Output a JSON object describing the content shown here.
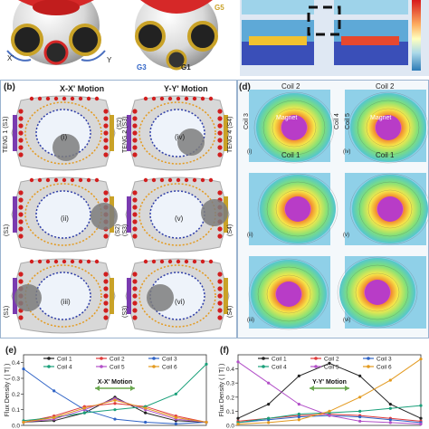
{
  "panel_a": {
    "axis_labels": {
      "x_prime": "X'",
      "y": "Y",
      "g3": "G3",
      "g1": "G1",
      "g5": "G5"
    }
  },
  "panel_b": {
    "letter": "(b)",
    "header_xx": "X-X' Motion",
    "header_yy": "Y-Y' Motion",
    "teng_labels": {
      "teng1": "TENG 1 (S1)",
      "s2": "(S2)",
      "teng2": "TENG 2 (S3)",
      "teng4": "TENG 4 (S4)",
      "s1": "(S1)",
      "s3": "(S3)",
      "s4": "(S4)"
    },
    "roman": [
      "(i)",
      "(ii)",
      "(iii)",
      "(iv)",
      "(v)",
      "(vi)"
    ]
  },
  "panel_d": {
    "letter": "(d)",
    "coil_labels": {
      "coil2_left": "Coil 2",
      "coil3": "Coil 3",
      "coil1_left": "Coil 1",
      "coil2_right": "Coil 2",
      "coil4": "Coil 4",
      "coil5": "Coil 5",
      "coil1_right": "Coil 1"
    },
    "magnet_label": "Magnet",
    "roman": [
      "(i)",
      "(ii)",
      "(iii)",
      "(iv)",
      "(v)",
      "(vi)"
    ]
  },
  "chart_data": [
    {
      "type": "line",
      "panel": "(e)",
      "ylabel": "Flux Density ( | T| )",
      "annotation": "X-X' Motion",
      "legend": [
        "Coil 1",
        "Coil 2",
        "Coil 3",
        "Coil 4",
        "Coil 5",
        "Coil 6"
      ],
      "colors": [
        "#222222",
        "#e03a3a",
        "#2f63c6",
        "#1aa07a",
        "#b24fc8",
        "#e39a1f"
      ],
      "yticks": [
        "0.4",
        "0.3",
        "0.2",
        "0.1",
        "0.0"
      ],
      "ylim": [
        0.0,
        0.45
      ],
      "x": [
        0,
        1,
        2,
        3,
        4,
        5,
        6
      ],
      "series": [
        {
          "name": "Coil 1",
          "values": [
            0.02,
            0.03,
            0.08,
            0.18,
            0.08,
            0.03,
            0.02
          ]
        },
        {
          "name": "Coil 2",
          "values": [
            0.02,
            0.06,
            0.12,
            0.14,
            0.12,
            0.06,
            0.02
          ]
        },
        {
          "name": "Coil 3",
          "values": [
            0.36,
            0.22,
            0.1,
            0.04,
            0.02,
            0.01,
            0.02
          ]
        },
        {
          "name": "Coil 4",
          "values": [
            0.03,
            0.05,
            0.08,
            0.1,
            0.12,
            0.2,
            0.39
          ]
        },
        {
          "name": "Coil 5",
          "values": [
            0.02,
            0.04,
            0.1,
            0.17,
            0.1,
            0.04,
            0.02
          ]
        },
        {
          "name": "Coil 6",
          "values": [
            0.02,
            0.05,
            0.11,
            0.16,
            0.11,
            0.05,
            0.02
          ]
        }
      ]
    },
    {
      "type": "line",
      "panel": "(f)",
      "ylabel": "Flux Density ( | T| )",
      "annotation": "Y-Y' Motion",
      "legend": [
        "Coil 1",
        "Coil 2",
        "Coil 3",
        "Coil 4",
        "Coil 5",
        "Coil 6"
      ],
      "colors": [
        "#222222",
        "#e03a3a",
        "#2f63c6",
        "#1aa07a",
        "#b24fc8",
        "#e39a1f"
      ],
      "yticks": [
        "0.4",
        "0.3",
        "0.2",
        "0.1",
        "0.0"
      ],
      "ylim": [
        0.0,
        0.5
      ],
      "x": [
        0,
        1,
        2,
        3,
        4,
        5,
        6
      ],
      "series": [
        {
          "name": "Coil 1",
          "values": [
            0.05,
            0.15,
            0.35,
            0.44,
            0.35,
            0.15,
            0.05
          ]
        },
        {
          "name": "Coil 2",
          "values": [
            0.03,
            0.05,
            0.07,
            0.08,
            0.07,
            0.05,
            0.03
          ]
        },
        {
          "name": "Coil 3",
          "values": [
            0.02,
            0.04,
            0.06,
            0.07,
            0.06,
            0.04,
            0.02
          ]
        },
        {
          "name": "Coil 4",
          "values": [
            0.02,
            0.05,
            0.08,
            0.09,
            0.1,
            0.12,
            0.14
          ]
        },
        {
          "name": "Coil 5",
          "values": [
            0.45,
            0.3,
            0.15,
            0.07,
            0.03,
            0.02,
            0.01
          ]
        },
        {
          "name": "Coil 6",
          "values": [
            0.01,
            0.02,
            0.04,
            0.1,
            0.2,
            0.32,
            0.47
          ]
        }
      ]
    }
  ]
}
